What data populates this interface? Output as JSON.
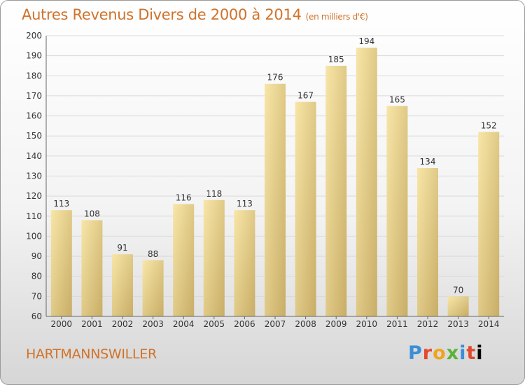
{
  "header": {
    "title": "Autres Revenus Divers de 2000 à 2014",
    "unit": "(en milliers d'€)"
  },
  "footer": {
    "commune": "HARTMANNSWILLER",
    "logo_letters": [
      "P",
      "r",
      "o",
      "x",
      "i",
      "t",
      "i"
    ]
  },
  "colors": {
    "title": "#d0722a",
    "bar_light": "#f7e2a2",
    "bar_dark": "#c9ae66",
    "grid": "#d8d8d8"
  },
  "chart_data": {
    "type": "bar",
    "title": "Autres Revenus Divers de 2000 à 2014",
    "subtitle": "(en milliers d'€)",
    "categories": [
      "2000",
      "2001",
      "2002",
      "2003",
      "2004",
      "2005",
      "2006",
      "2007",
      "2008",
      "2009",
      "2010",
      "2011",
      "2012",
      "2013",
      "2014"
    ],
    "values": [
      113,
      108,
      91,
      88,
      116,
      118,
      113,
      176,
      167,
      185,
      194,
      165,
      134,
      70,
      152
    ],
    "ylim": [
      60,
      200
    ],
    "yticks": [
      60,
      70,
      80,
      90,
      100,
      110,
      120,
      130,
      140,
      150,
      160,
      170,
      180,
      190,
      200
    ],
    "grid": true
  }
}
